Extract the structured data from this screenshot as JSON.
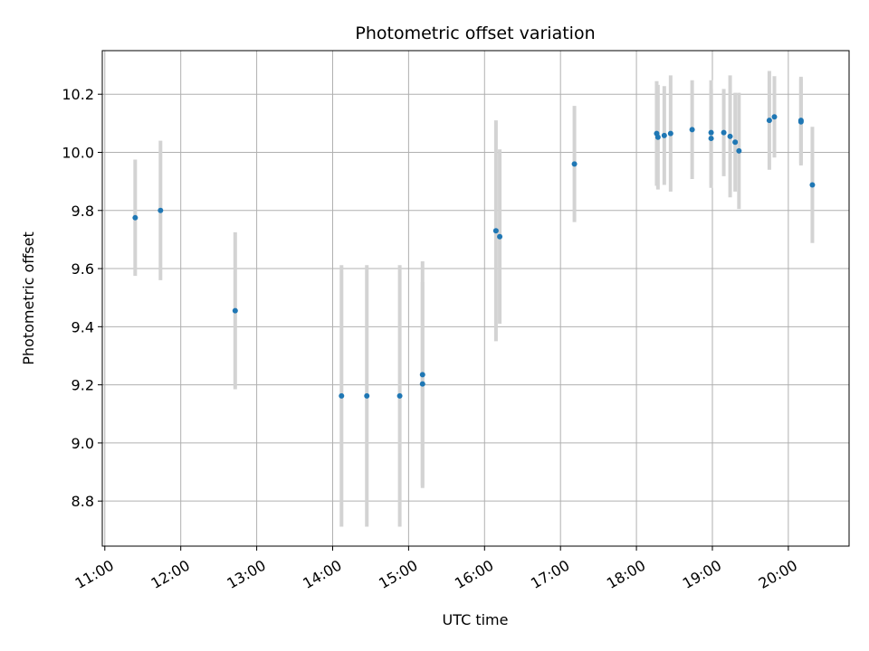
{
  "chart_data": {
    "type": "scatter",
    "title": "Photometric offset variation",
    "xlabel": "UTC time",
    "ylabel": "Photometric offset",
    "xlim": [
      "10:58",
      "20:48"
    ],
    "ylim": [
      8.645,
      10.35
    ],
    "x_ticks": [
      "11:00",
      "12:00",
      "13:00",
      "14:00",
      "15:00",
      "16:00",
      "17:00",
      "18:00",
      "19:00",
      "20:00"
    ],
    "y_ticks": [
      "8.8",
      "9.0",
      "9.2",
      "9.4",
      "9.6",
      "9.8",
      "10.0",
      "10.2"
    ],
    "grid": true,
    "marker_color": "#1f77b4",
    "errorbar_color": "#d3d3d3",
    "series": [
      {
        "points": [
          {
            "x": "11:24",
            "y": 9.775,
            "err": 0.2
          },
          {
            "x": "11:44",
            "y": 9.8,
            "err": 0.24
          },
          {
            "x": "12:43",
            "y": 9.455,
            "err": 0.27
          },
          {
            "x": "14:07",
            "y": 9.162,
            "err": 0.45
          },
          {
            "x": "14:27",
            "y": 9.162,
            "err": 0.45
          },
          {
            "x": "14:53",
            "y": 9.162,
            "err": 0.45
          },
          {
            "x": "15:11",
            "y": 9.203,
            "err": 0.35
          },
          {
            "x": "15:11",
            "y": 9.235,
            "err": 0.39
          },
          {
            "x": "16:09",
            "y": 9.73,
            "err": 0.38
          },
          {
            "x": "16:12",
            "y": 9.71,
            "err": 0.3
          },
          {
            "x": "17:11",
            "y": 9.96,
            "err": 0.2
          },
          {
            "x": "18:16",
            "y": 10.065,
            "err": 0.18
          },
          {
            "x": "18:17",
            "y": 10.052,
            "err": 0.18
          },
          {
            "x": "18:22",
            "y": 10.058,
            "err": 0.17
          },
          {
            "x": "18:27",
            "y": 10.065,
            "err": 0.2
          },
          {
            "x": "18:44",
            "y": 10.078,
            "err": 0.17
          },
          {
            "x": "18:59",
            "y": 10.068,
            "err": 0.18
          },
          {
            "x": "18:59",
            "y": 10.048,
            "err": 0.17
          },
          {
            "x": "19:09",
            "y": 10.068,
            "err": 0.15
          },
          {
            "x": "19:14",
            "y": 10.055,
            "err": 0.21
          },
          {
            "x": "19:18",
            "y": 10.035,
            "err": 0.17
          },
          {
            "x": "19:21",
            "y": 10.005,
            "err": 0.2
          },
          {
            "x": "19:45",
            "y": 10.11,
            "err": 0.17
          },
          {
            "x": "19:49",
            "y": 10.122,
            "err": 0.14
          },
          {
            "x": "20:10",
            "y": 10.11,
            "err": 0.15
          },
          {
            "x": "20:10",
            "y": 10.105,
            "err": 0.15
          },
          {
            "x": "20:19",
            "y": 9.888,
            "err": 0.2
          }
        ]
      }
    ]
  }
}
